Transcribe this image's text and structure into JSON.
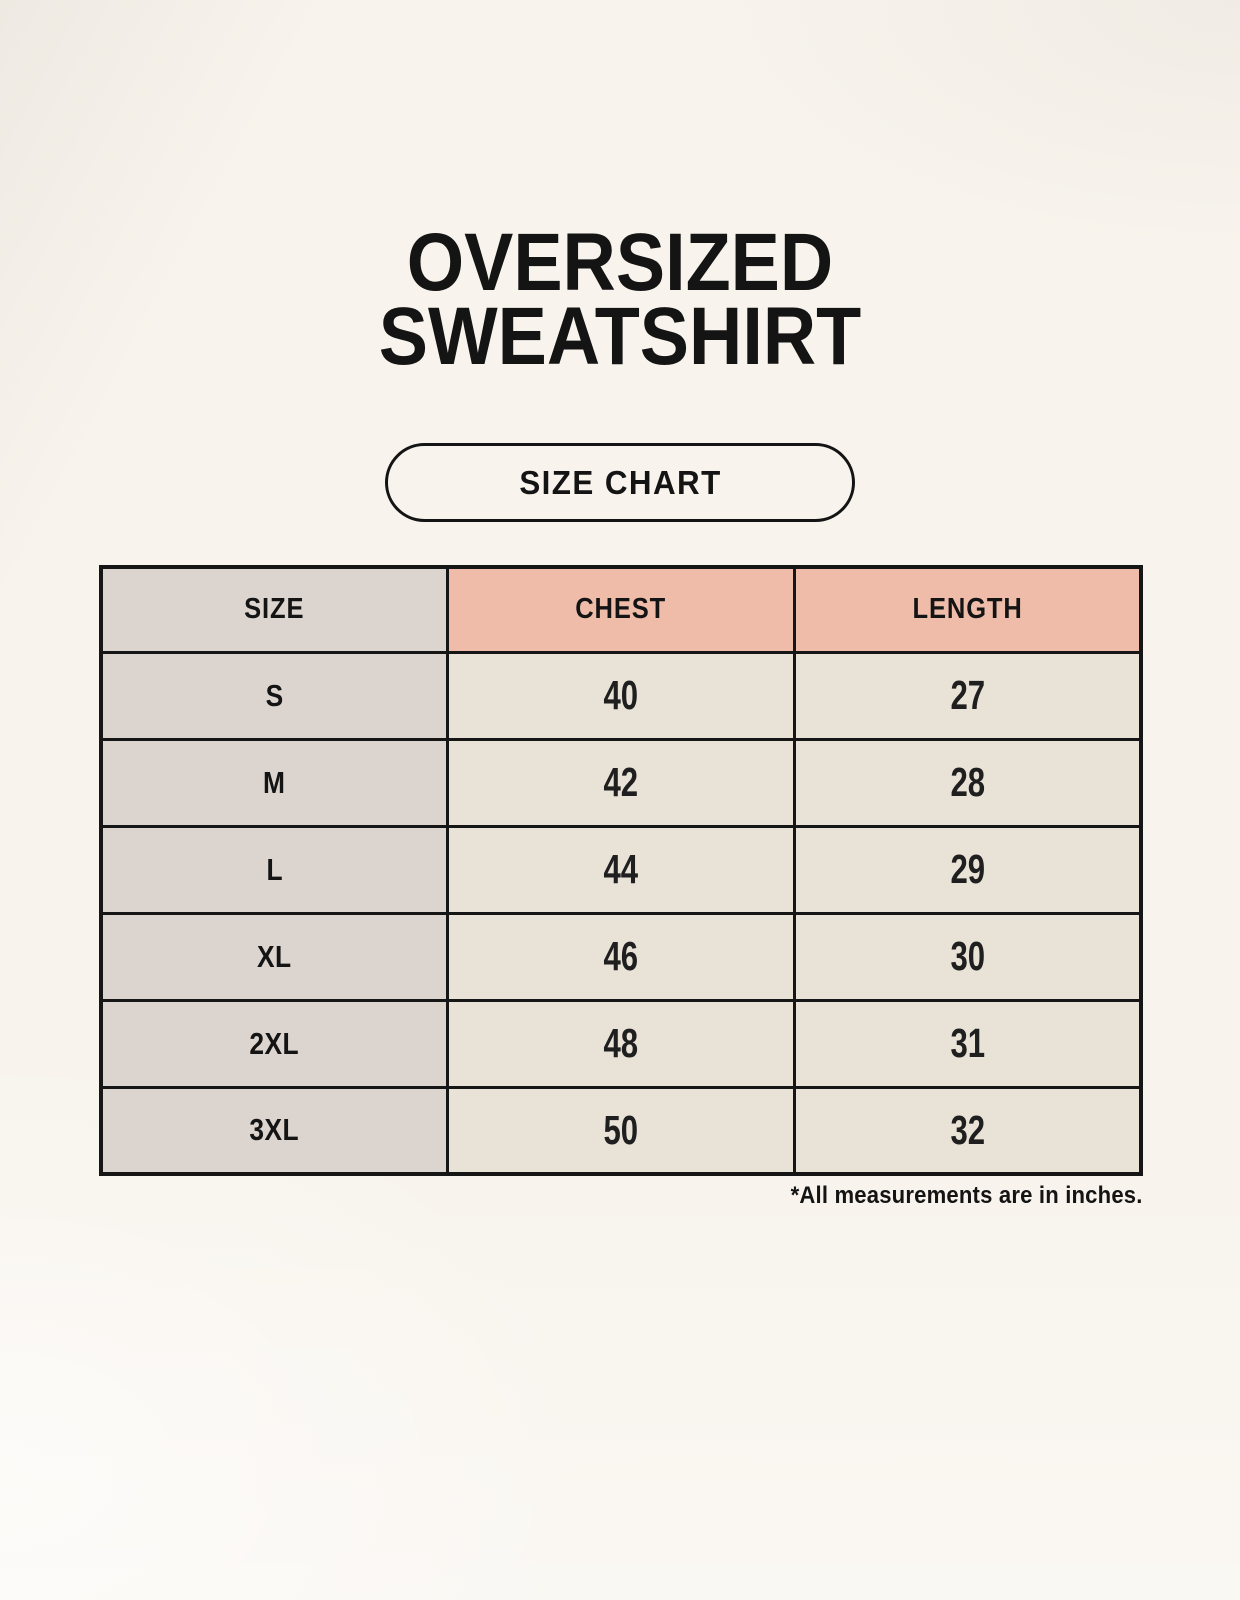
{
  "header": {
    "title_line1": "OVERSIZED",
    "title_line2": "SWEATSHIRT",
    "badge_label": "SIZE CHART"
  },
  "footer": {
    "note": "*All measurements are in inches."
  },
  "colors": {
    "background": "#f8f4ed",
    "accent_header": "#efbcaa",
    "size_column": "#dcd4cf",
    "data_cell": "#e9e2d7",
    "border": "#161616",
    "text": "#141414"
  },
  "chart_data": {
    "type": "table",
    "title": "OVERSIZED SWEATSHIRT",
    "subtitle": "SIZE CHART",
    "columns": [
      "SIZE",
      "CHEST",
      "LENGTH"
    ],
    "rows": [
      [
        "S",
        40,
        27
      ],
      [
        "M",
        42,
        28
      ],
      [
        "L",
        44,
        29
      ],
      [
        "XL",
        46,
        30
      ],
      [
        "2XL",
        48,
        31
      ],
      [
        "3XL",
        50,
        32
      ]
    ],
    "units": "inches",
    "note": "*All measurements are in inches."
  }
}
